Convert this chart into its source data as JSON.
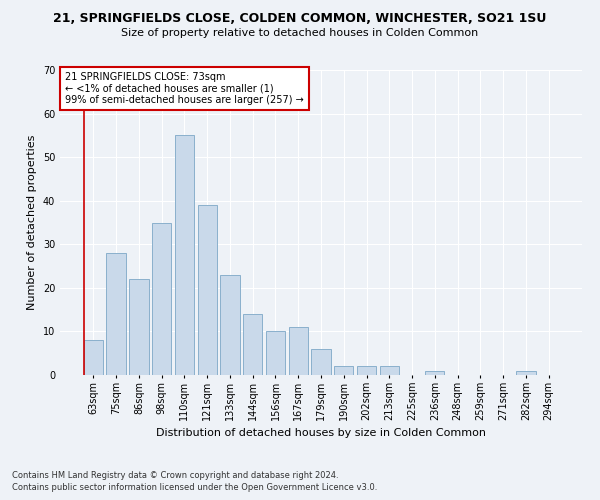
{
  "title": "21, SPRINGFIELDS CLOSE, COLDEN COMMON, WINCHESTER, SO21 1SU",
  "subtitle": "Size of property relative to detached houses in Colden Common",
  "xlabel": "Distribution of detached houses by size in Colden Common",
  "ylabel": "Number of detached properties",
  "footnote1": "Contains HM Land Registry data © Crown copyright and database right 2024.",
  "footnote2": "Contains public sector information licensed under the Open Government Licence v3.0.",
  "bar_labels": [
    "63sqm",
    "75sqm",
    "86sqm",
    "98sqm",
    "110sqm",
    "121sqm",
    "133sqm",
    "144sqm",
    "156sqm",
    "167sqm",
    "179sqm",
    "190sqm",
    "202sqm",
    "213sqm",
    "225sqm",
    "236sqm",
    "248sqm",
    "259sqm",
    "271sqm",
    "282sqm",
    "294sqm"
  ],
  "bar_values": [
    8,
    28,
    22,
    35,
    55,
    39,
    23,
    14,
    10,
    11,
    6,
    2,
    2,
    2,
    0,
    1,
    0,
    0,
    0,
    1,
    0
  ],
  "bar_color": "#c9d9ea",
  "bar_edge_color": "#8ab0cc",
  "ylim": [
    0,
    70
  ],
  "yticks": [
    0,
    10,
    20,
    30,
    40,
    50,
    60,
    70
  ],
  "annotation_text_line1": "21 SPRINGFIELDS CLOSE: 73sqm",
  "annotation_text_line2": "← <1% of detached houses are smaller (1)",
  "annotation_text_line3": "99% of semi-detached houses are larger (257) →",
  "bg_color": "#eef2f7",
  "grid_color": "#ffffff",
  "annotation_box_color": "#ffffff",
  "annotation_box_edge": "#cc0000",
  "vline_color": "#cc0000",
  "title_fontsize": 9,
  "subtitle_fontsize": 8,
  "ylabel_fontsize": 8,
  "xlabel_fontsize": 8,
  "tick_fontsize": 7,
  "ann_fontsize": 7,
  "footnote_fontsize": 6
}
